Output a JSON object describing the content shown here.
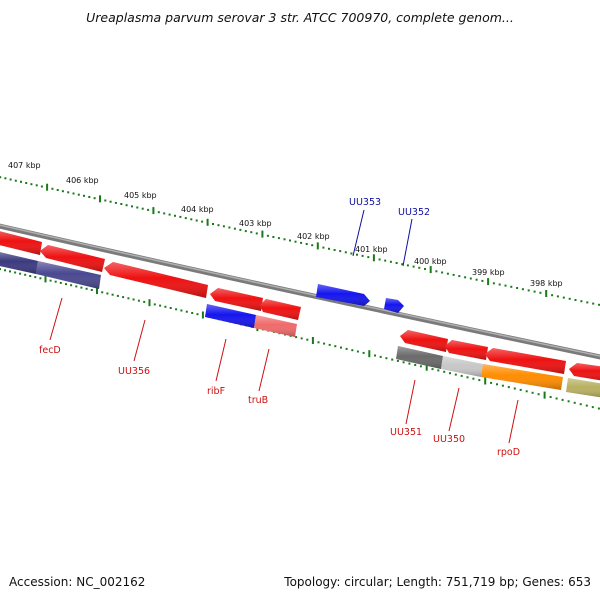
{
  "title": "Ureaplasma parvum serovar 3 str. ATCC 700970, complete genom...",
  "footer": {
    "accession": "Accession: NC_002162",
    "summary": "Topology: circular; Length: 751,719 bp; Genes: 653"
  },
  "colors": {
    "backbone": "#8c8c8c",
    "tick": "#1a7a1a",
    "forward_label": "#1010a0",
    "reverse_label": "#cc1111",
    "red": "#ee1111",
    "blue": "#1515ee",
    "navy": "#3c3a80",
    "pink": "#f06a6a",
    "dark_gray": "#6a6a6a",
    "light_gray": "#c8c8c8",
    "orange": "#ff8c00",
    "olive": "#b8b060"
  },
  "kbp_labels": [
    "407 kbp",
    "406 kbp",
    "405 kbp",
    "404 kbp",
    "403 kbp",
    "402 kbp",
    "401 kbp",
    "400 kbp",
    "399 kbp",
    "398 kbp"
  ],
  "forward_genes": [
    {
      "label": "UU353",
      "color": "blue"
    },
    {
      "label": "UU352",
      "color": "blue"
    }
  ],
  "reverse_genes": [
    {
      "label": "fecD",
      "color": "red"
    },
    {
      "label": "UU356",
      "color": "red"
    },
    {
      "label": "ribF",
      "color": "red"
    },
    {
      "label": "truB",
      "color": "red"
    },
    {
      "label": "UU351",
      "color": "red"
    },
    {
      "label": "UU350",
      "color": "red"
    },
    {
      "label": "rpoD",
      "color": "red"
    }
  ]
}
